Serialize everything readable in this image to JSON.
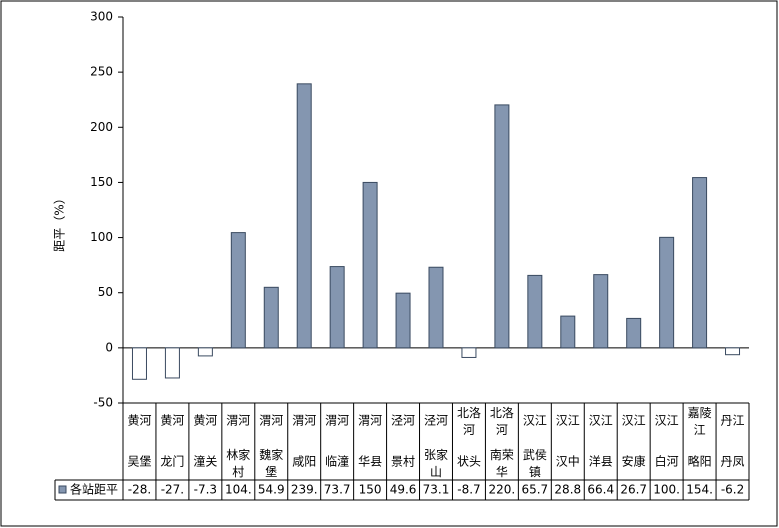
{
  "chart_data": {
    "type": "bar",
    "ylabel": "距平（%）",
    "rivers": [
      "黄河",
      "黄河",
      "黄河",
      "渭河",
      "渭河",
      "渭河",
      "渭河",
      "渭河",
      "泾河",
      "泾河",
      "北洛河",
      "北洛河",
      "汉江",
      "汉江",
      "汉江",
      "汉江",
      "汉江",
      "嘉陵江",
      "丹江"
    ],
    "categories": [
      "吴堡",
      "龙门",
      "潼关",
      "林家村",
      "魏家堡",
      "咸阳",
      "临潼",
      "华县",
      "景村",
      "张家山",
      "状头",
      "南荣华",
      "武侯镇",
      "汉中",
      "洋县",
      "安康",
      "白河",
      "略阳",
      "丹凤"
    ],
    "series": [
      {
        "name": "各站距平",
        "color": "#8496b0",
        "values": [
          -28.5,
          -27.3,
          -7.3,
          104.5,
          54.9,
          239.4,
          73.7,
          150,
          49.6,
          73.1,
          -8.7,
          220.3,
          65.7,
          28.8,
          66.4,
          26.7,
          100.2,
          154.4,
          -6.2
        ],
        "value_labels": [
          "-28.",
          "-27.",
          "-7.3",
          "104.",
          "54.9",
          "239.",
          "73.7",
          "150",
          "49.6",
          "73.1",
          "-8.7",
          "220.",
          "65.7",
          "28.8",
          "66.4",
          "26.7",
          "100.",
          "154.",
          "-6.2"
        ]
      }
    ],
    "ylim": [
      -50,
      300
    ],
    "yticks": [
      -50,
      0,
      50,
      100,
      150,
      200,
      250,
      300
    ]
  }
}
